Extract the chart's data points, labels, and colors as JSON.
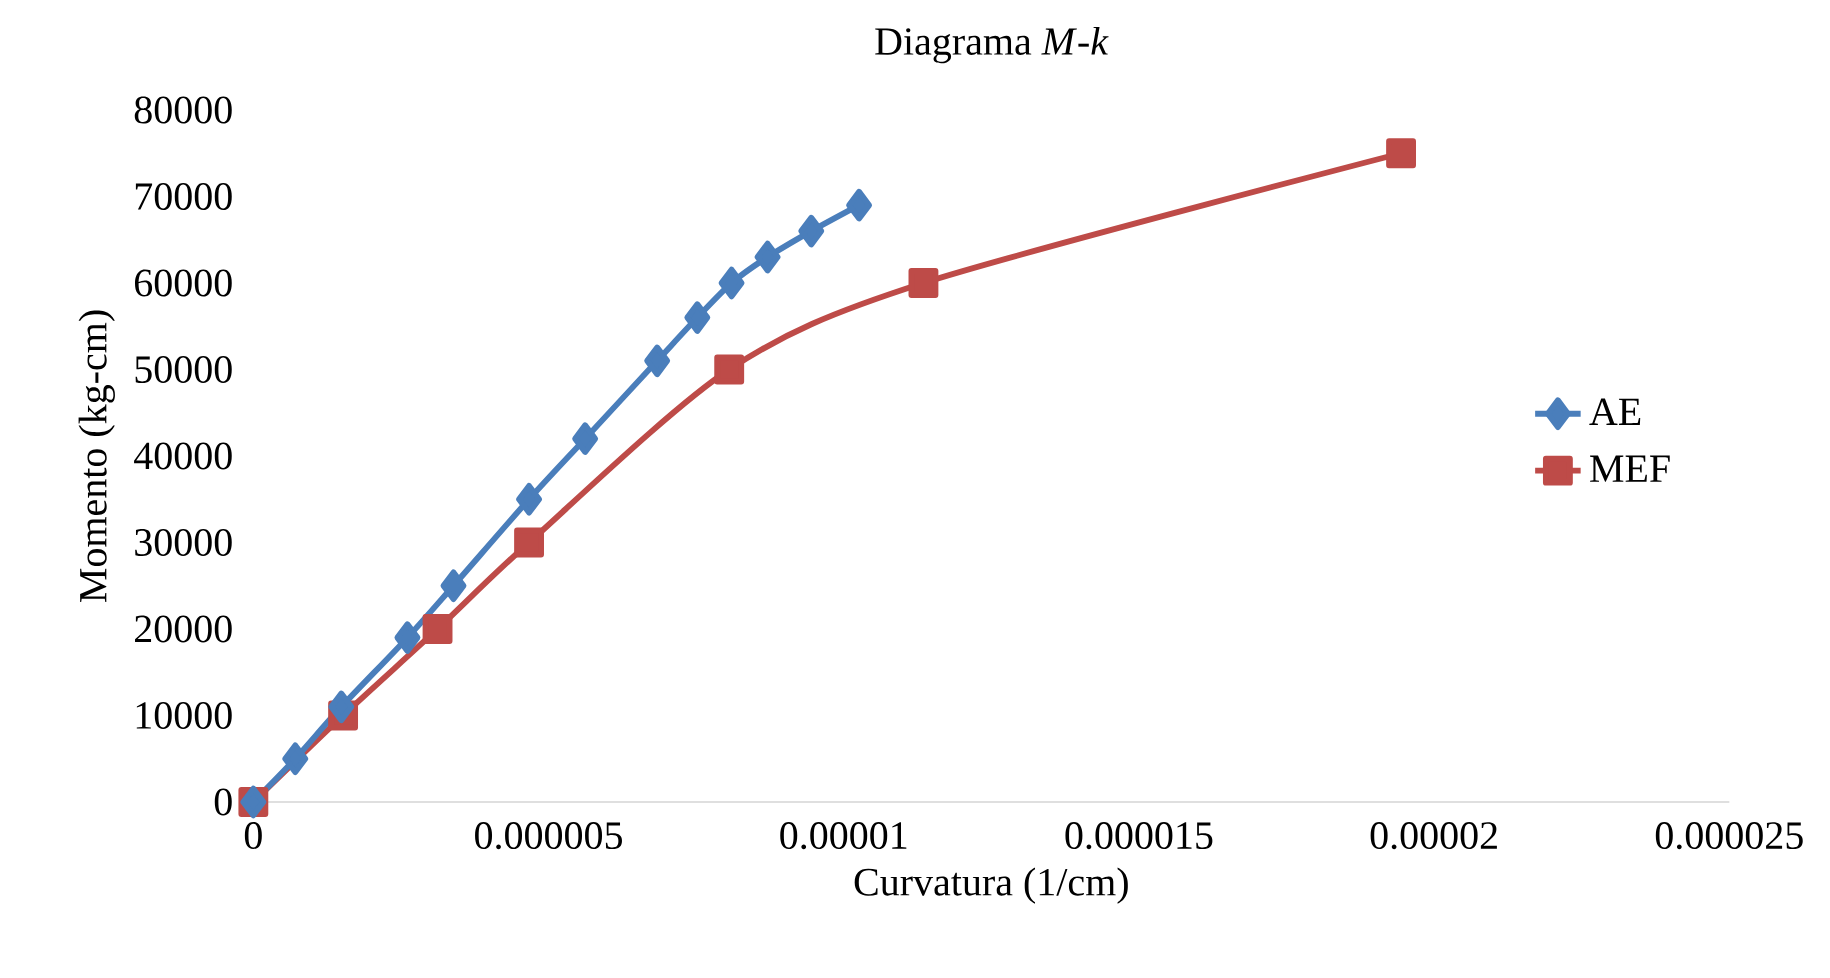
{
  "chart_data": {
    "type": "line",
    "title": "Diagrama *M*-*k*",
    "xlabel": "Curvatura (1/cm)",
    "ylabel": "Momento (kg-cm)",
    "series": [
      {
        "name": "AE",
        "color": "#4a7ebb",
        "marker": "diamond",
        "x": [
          0,
          7.1e-07,
          1.49e-06,
          2.61e-06,
          3.39e-06,
          4.67e-06,
          5.62e-06,
          6.84e-06,
          7.52e-06,
          8.1e-06,
          8.71e-06,
          9.45e-06,
          1.026e-05
        ],
        "values": [
          0,
          5000,
          11000,
          19000,
          25000,
          35000,
          42000,
          51000,
          56000,
          60000,
          63000,
          66000,
          69000
        ]
      },
      {
        "name": "MEF",
        "color": "#be4b48",
        "marker": "square",
        "x": [
          0,
          1.52e-06,
          3.12e-06,
          4.67e-06,
          8.06e-06,
          1.135e-05,
          1.944e-05
        ],
        "values": [
          0,
          10000,
          20000,
          30000,
          50000,
          60000,
          75000
        ]
      }
    ],
    "xlim": [
      0,
      2.5e-05
    ],
    "ylim": [
      0,
      80000
    ],
    "xticks": [
      {
        "value": 0,
        "label": "0"
      },
      {
        "value": 5e-06,
        "label": "0.000005"
      },
      {
        "value": 1e-05,
        "label": "0.00001"
      },
      {
        "value": 1.5e-05,
        "label": "0.000015"
      },
      {
        "value": 2e-05,
        "label": "0.00002"
      },
      {
        "value": 2.5e-05,
        "label": "0.000025"
      }
    ],
    "yticks": [
      0,
      10000,
      20000,
      30000,
      40000,
      50000,
      60000,
      70000,
      80000
    ],
    "grid": false,
    "legend": "right",
    "line_style": "solid"
  }
}
